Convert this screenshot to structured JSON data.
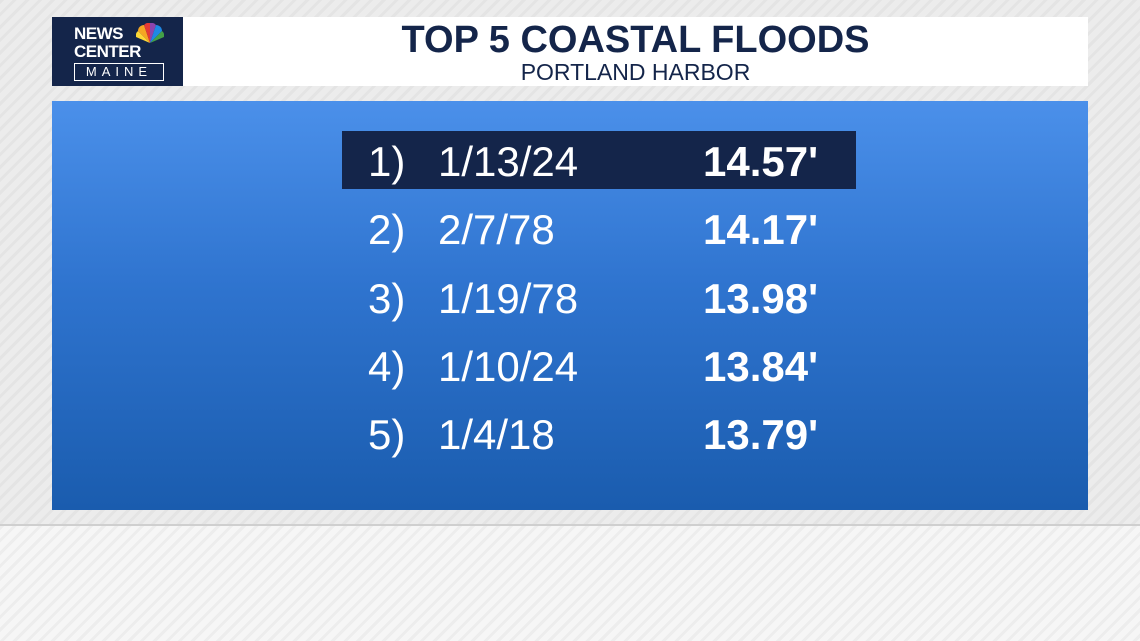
{
  "logo": {
    "line1": "NEWS",
    "line2": "CENTER",
    "line3": "MAINE"
  },
  "header": {
    "title": "TOP 5 COASTAL FLOODS",
    "subtitle": "PORTLAND HARBOR"
  },
  "table": {
    "rows": [
      [
        "1)",
        "1/13/24",
        "14.57'"
      ],
      [
        "2)",
        "2/7/78",
        "14.17'"
      ],
      [
        "3)",
        "1/19/78",
        "13.98'"
      ],
      [
        "4)",
        "1/10/24",
        "13.84'"
      ],
      [
        "5)",
        "1/4/18",
        "13.79'"
      ]
    ]
  }
}
